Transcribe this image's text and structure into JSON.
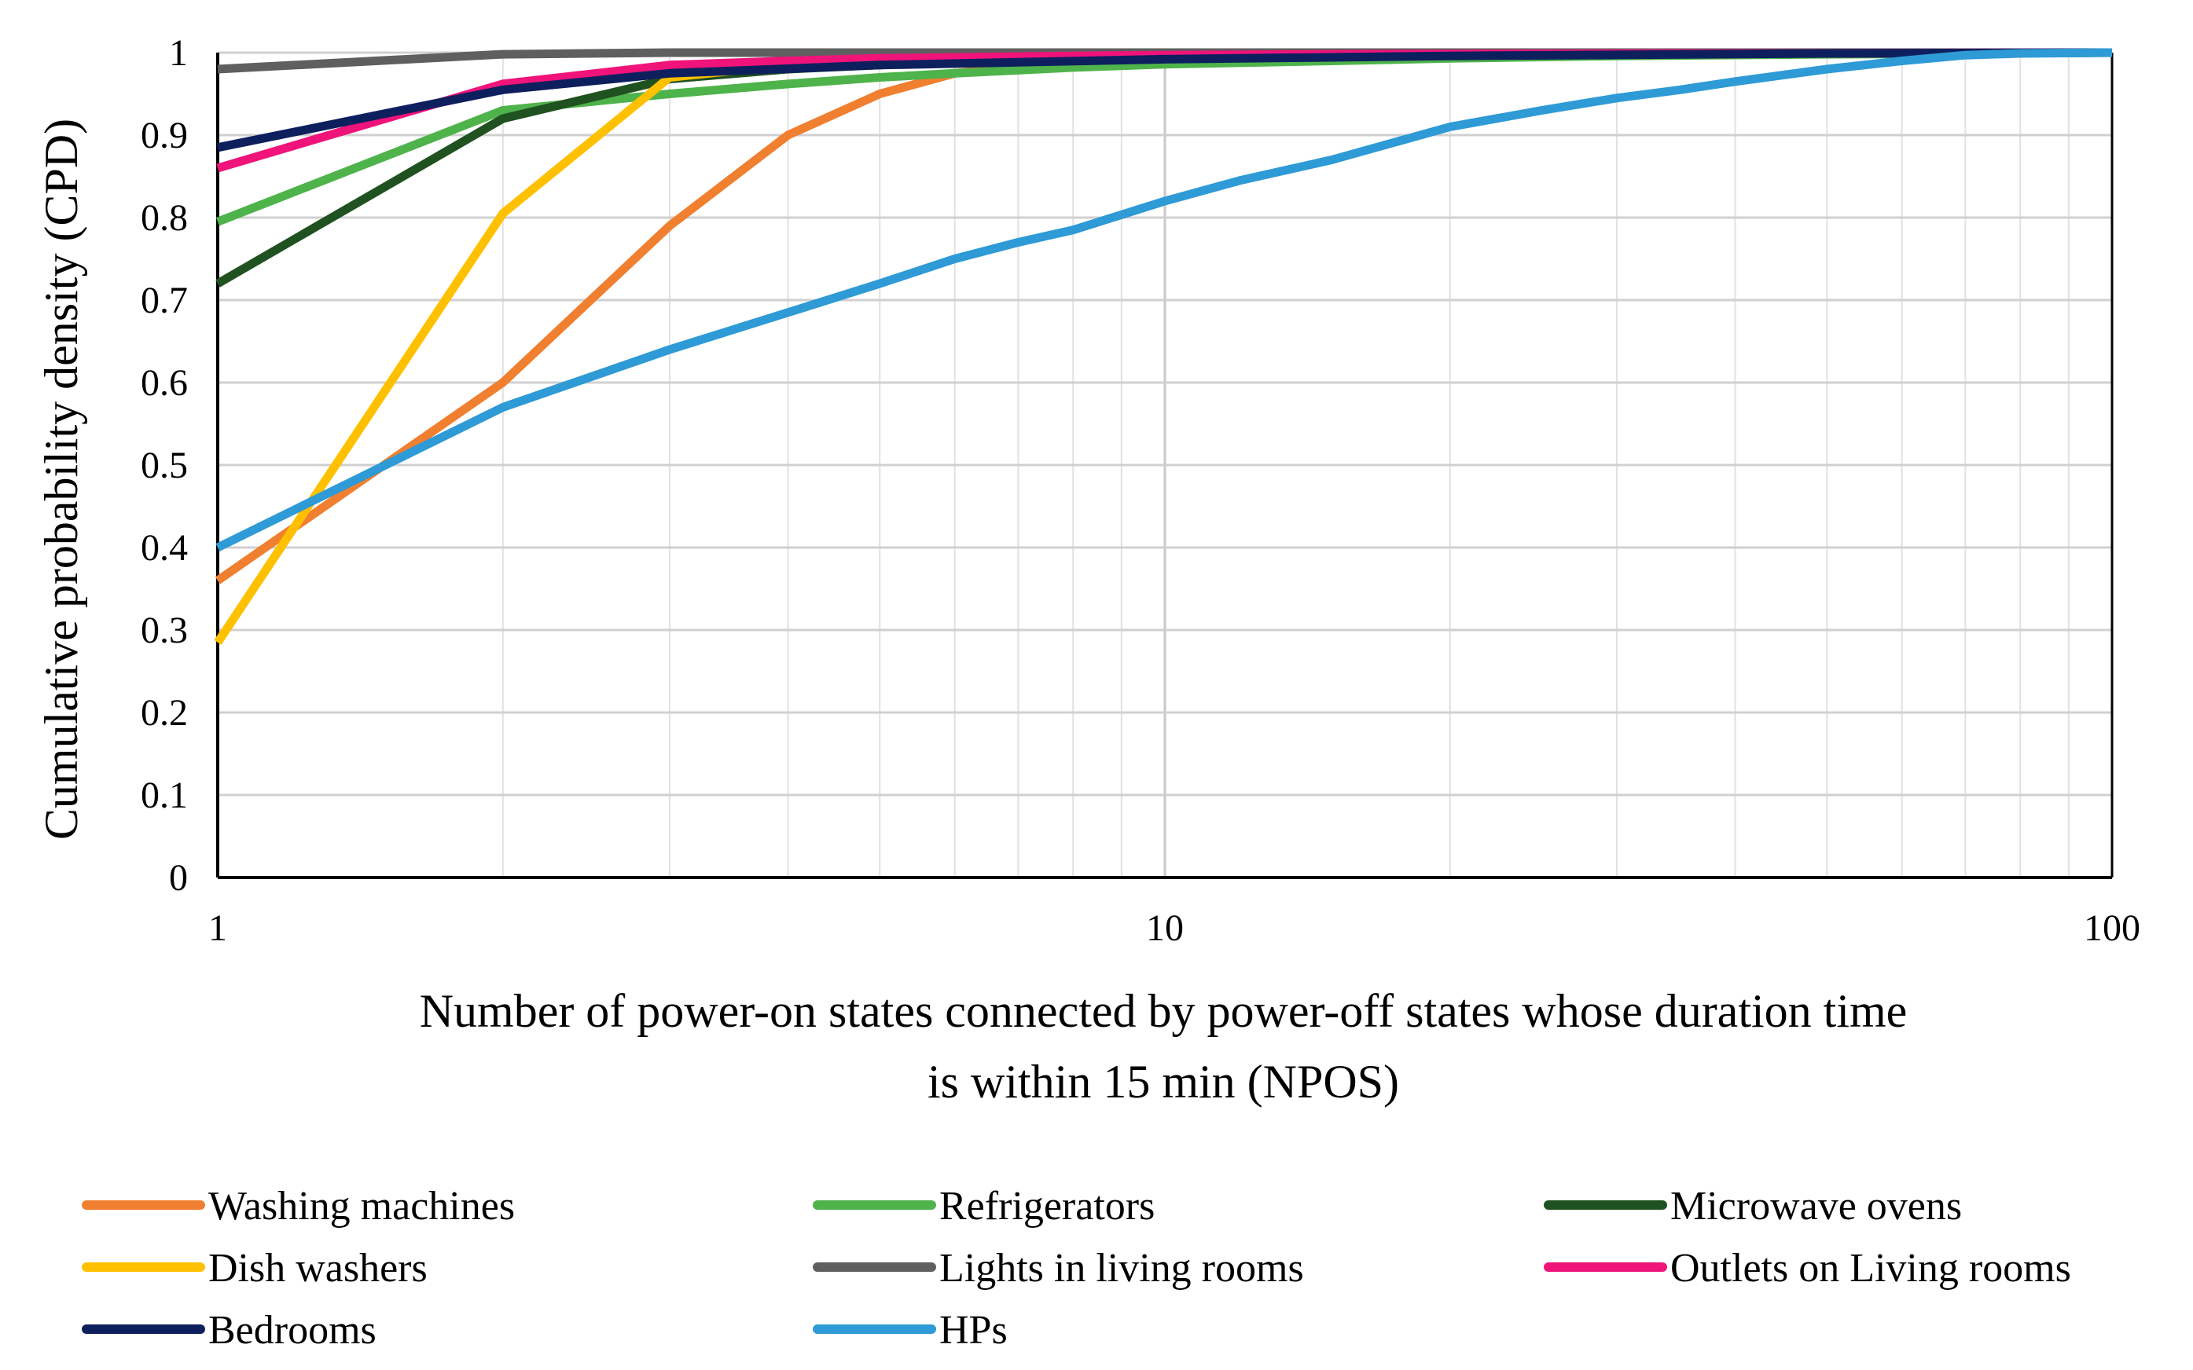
{
  "chart_data": {
    "type": "line",
    "title": "",
    "xlabel_lines": [
      "Number of power-on states connected by power-off states whose duration time",
      "is within 15 min (NPOS)"
    ],
    "ylabel": "Cumulative probability density (CPD)",
    "xscale": "log",
    "xlim": [
      1,
      100
    ],
    "ylim": [
      0,
      1
    ],
    "xticks": [
      1,
      10,
      100
    ],
    "xtick_labels": [
      "1",
      "10",
      "100"
    ],
    "yticks": [
      0,
      0.1,
      0.2,
      0.3,
      0.4,
      0.5,
      0.6,
      0.7,
      0.8,
      0.9,
      1
    ],
    "ytick_labels": [
      "0",
      "0.1",
      "0.2",
      "0.3",
      "0.4",
      "0.5",
      "0.6",
      "0.7",
      "0.8",
      "0.9",
      "1"
    ],
    "grid": true,
    "legend_position": "bottom",
    "series": [
      {
        "name": "Washing machines",
        "color": "#F07F2F",
        "x": [
          1,
          2,
          3,
          4,
          5,
          6,
          8,
          10,
          100
        ],
        "y": [
          0.36,
          0.6,
          0.79,
          0.9,
          0.95,
          0.975,
          0.99,
          0.995,
          1.0
        ]
      },
      {
        "name": "Refrigerators",
        "color": "#4EB34A",
        "x": [
          1,
          2,
          3,
          4,
          5,
          6,
          8,
          10,
          15,
          20,
          30,
          50,
          100
        ],
        "y": [
          0.795,
          0.93,
          0.95,
          0.962,
          0.97,
          0.975,
          0.982,
          0.986,
          0.99,
          0.993,
          0.996,
          0.998,
          1.0
        ]
      },
      {
        "name": "Microwave ovens",
        "color": "#1F5220",
        "x": [
          1,
          2,
          3,
          4,
          5,
          7,
          10,
          20,
          100
        ],
        "y": [
          0.72,
          0.92,
          0.968,
          0.98,
          0.985,
          0.99,
          0.995,
          0.998,
          1.0
        ]
      },
      {
        "name": "Dish washers",
        "color": "#FFC000",
        "x": [
          1,
          2,
          3,
          4,
          5,
          6,
          10,
          100
        ],
        "y": [
          0.285,
          0.805,
          0.97,
          0.985,
          0.99,
          0.995,
          0.998,
          1.0
        ]
      },
      {
        "name": "Lights in living rooms",
        "color": "#5F5F5F",
        "x": [
          1,
          2,
          3,
          100
        ],
        "y": [
          0.98,
          0.998,
          1.0,
          1.0
        ]
      },
      {
        "name": "Outlets on Living rooms",
        "color": "#F0137A",
        "x": [
          1,
          2,
          3,
          4,
          5,
          8,
          10,
          15,
          100
        ],
        "y": [
          0.86,
          0.962,
          0.985,
          0.99,
          0.993,
          0.996,
          0.997,
          0.998,
          1.0
        ]
      },
      {
        "name": "Bedrooms",
        "color": "#0E1F5E",
        "x": [
          1,
          2,
          3,
          5,
          10,
          20,
          50,
          100
        ],
        "y": [
          0.885,
          0.955,
          0.975,
          0.985,
          0.992,
          0.996,
          0.999,
          1.0
        ]
      },
      {
        "name": "HPs",
        "color": "#2E9AD6",
        "x": [
          1,
          2,
          3,
          4,
          5,
          6,
          7,
          8,
          10,
          12,
          15,
          20,
          25,
          30,
          35,
          40,
          50,
          60,
          70,
          80,
          100
        ],
        "y": [
          0.4,
          0.57,
          0.64,
          0.685,
          0.72,
          0.75,
          0.77,
          0.785,
          0.82,
          0.845,
          0.87,
          0.91,
          0.93,
          0.945,
          0.955,
          0.965,
          0.98,
          0.99,
          0.997,
          0.999,
          1.0
        ]
      }
    ]
  }
}
